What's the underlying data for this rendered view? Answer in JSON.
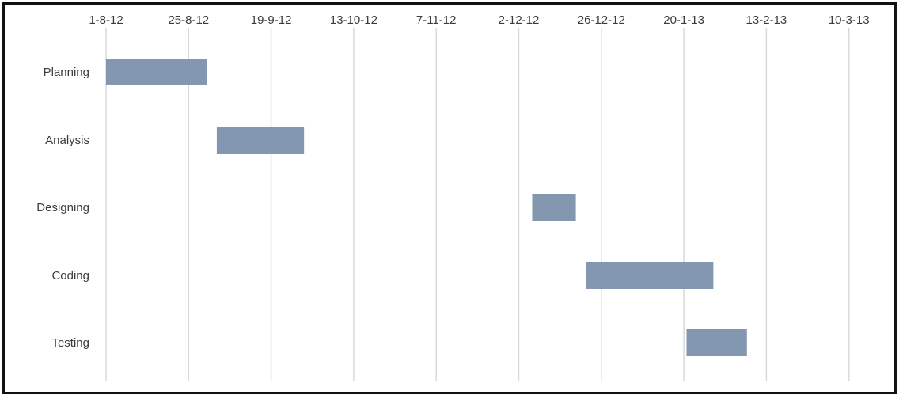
{
  "chart_data": {
    "type": "gantt",
    "title": "",
    "xlabel": "",
    "ylabel": "",
    "x_ticks": [
      "1-8-12",
      "25-8-12",
      "19-9-12",
      "13-10-12",
      "7-11-12",
      "2-12-12",
      "26-12-12",
      "20-1-13",
      "13-2-13",
      "10-3-13"
    ],
    "x_axis_type": "date",
    "xlim": [
      "2012-08-01",
      "2013-03-10"
    ],
    "grid": "vertical",
    "legend": "none",
    "bar_color": "#8497b0",
    "tasks": [
      {
        "name": "Planning",
        "start": "2012-08-01",
        "end": "2012-08-31"
      },
      {
        "name": "Analysis",
        "start": "2012-09-03",
        "end": "2012-09-29"
      },
      {
        "name": "Designing",
        "start": "2012-12-06",
        "end": "2012-12-19"
      },
      {
        "name": "Coding",
        "start": "2012-12-22",
        "end": "2013-01-29"
      },
      {
        "name": "Testing",
        "start": "2013-01-21",
        "end": "2013-02-08"
      }
    ]
  }
}
